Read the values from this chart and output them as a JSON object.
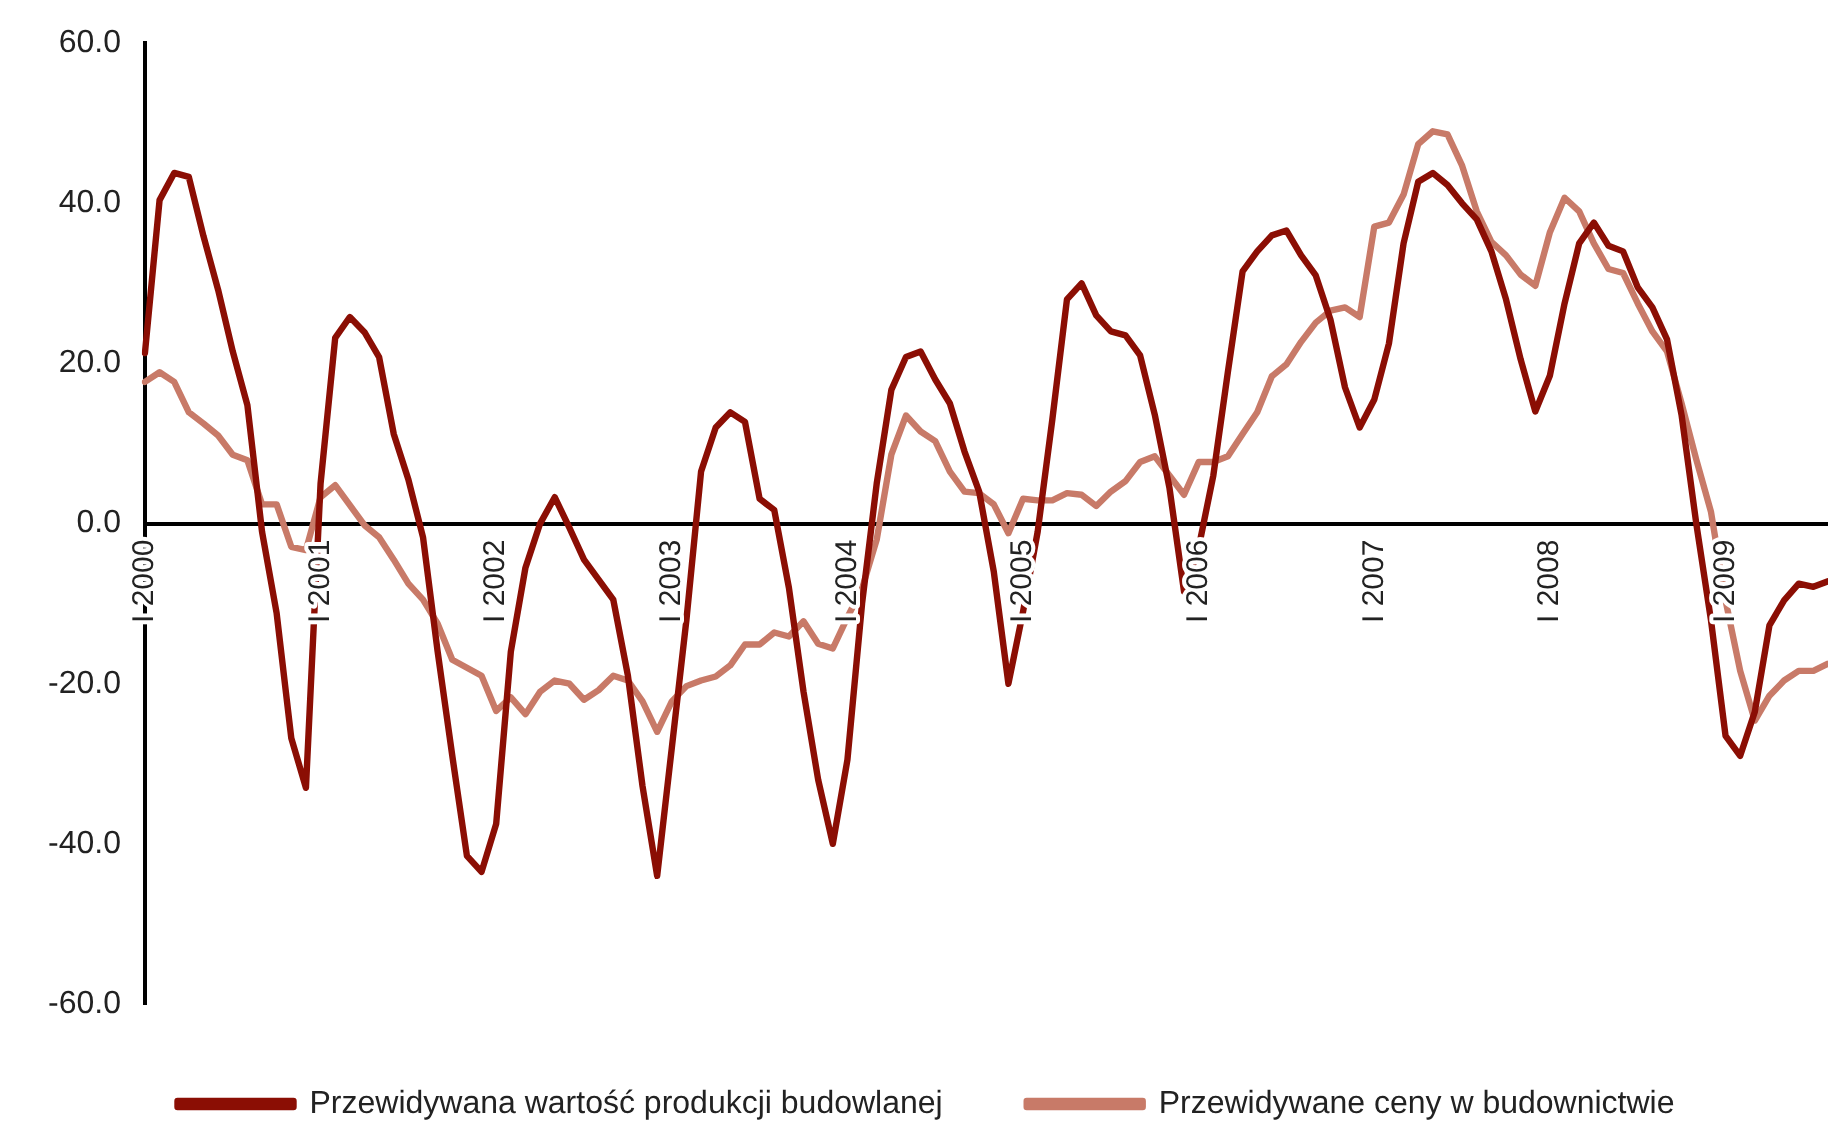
{
  "chart_data": {
    "type": "line",
    "categories": [
      "I 2000",
      null,
      null,
      null,
      null,
      null,
      null,
      null,
      null,
      null,
      null,
      null,
      "I 2001",
      null,
      null,
      null,
      null,
      null,
      null,
      null,
      null,
      null,
      null,
      null,
      "I 2002",
      null,
      null,
      null,
      null,
      null,
      null,
      null,
      null,
      null,
      null,
      null,
      "I 2003",
      null,
      null,
      null,
      null,
      null,
      null,
      null,
      null,
      null,
      null,
      null,
      "I 2004",
      null,
      null,
      null,
      null,
      null,
      null,
      null,
      null,
      null,
      null,
      null,
      "I 2005",
      null,
      null,
      null,
      null,
      null,
      null,
      null,
      null,
      null,
      null,
      null,
      "I 2006",
      null,
      null,
      null,
      null,
      null,
      null,
      null,
      null,
      null,
      null,
      null,
      "I 2007",
      null,
      null,
      null,
      null,
      null,
      null,
      null,
      null,
      null,
      null,
      null,
      "I 2008",
      null,
      null,
      null,
      null,
      null,
      null,
      null,
      null,
      null,
      null,
      null,
      "I 2009",
      null,
      null,
      null,
      null,
      null,
      null,
      null
    ],
    "series": [
      {
        "name": "Przewidywana wartość produkcji budowlanej",
        "color": "#8b0e04",
        "values": [
          21.3,
          40.4,
          43.8,
          43.3,
          35.9,
          29.2,
          21.5,
          14.8,
          -1,
          -11.2,
          -26.8,
          -33,
          5,
          23.2,
          25.8,
          23.9,
          20.8,
          11.2,
          5.5,
          -1.7,
          -16,
          -29,
          -41.5,
          -43.5,
          -37.5,
          -16,
          -5.5,
          0,
          3.3,
          -0.5,
          -4.5,
          -7,
          -9.5,
          -19,
          -32.8,
          -44,
          -28,
          -12,
          6.5,
          12,
          13.9,
          12.7,
          3.1,
          1.7,
          -8,
          -21,
          -32,
          -40,
          -29.5,
          -10,
          5,
          16.7,
          20.8,
          21.5,
          18,
          15,
          9,
          4,
          -6,
          -20,
          -11,
          -1,
          13,
          28,
          30,
          26,
          24,
          23.5,
          21,
          13.6,
          4.5,
          -8.5,
          -3,
          6,
          19,
          31.5,
          34,
          36,
          36.6,
          33.5,
          31,
          25.5,
          17,
          12,
          15.5,
          22.5,
          35,
          42.7,
          43.8,
          42.3,
          40,
          38,
          34,
          28,
          20.5,
          14,
          18.5,
          27.5,
          35,
          37.6,
          34.7,
          34,
          29.5,
          27,
          23,
          13.5,
          0,
          -12,
          -26.5,
          -29,
          -23.5,
          -12.7,
          -9.6,
          -7.5,
          -7.9,
          -7.2
        ]
      },
      {
        "name": "Przewidywane ceny w budownictwie",
        "color": "#c87a68",
        "values": [
          17.7,
          18.9,
          17.7,
          13.9,
          12.5,
          11,
          8.6,
          7.9,
          2.4,
          2.4,
          -2.9,
          -3.3,
          3.3,
          4.8,
          2.3,
          -0.2,
          -1.7,
          -4.5,
          -7.5,
          -9.5,
          -12.5,
          -17,
          -18,
          -19,
          -23.4,
          -21.7,
          -23.8,
          -21,
          -19.6,
          -20,
          -22,
          -20.8,
          -19,
          -19.6,
          -22.2,
          -26,
          -22.2,
          -20.3,
          -19.6,
          -19.1,
          -17.7,
          -15.1,
          -15.1,
          -13.6,
          -14.1,
          -12.2,
          -15,
          -15.6,
          -11.7,
          -8.1,
          -2,
          8.6,
          13.5,
          11.5,
          10.3,
          6.5,
          4,
          3.8,
          2.4,
          -1.2,
          3.1,
          2.9,
          2.9,
          3.8,
          3.6,
          2.2,
          4,
          5.3,
          7.7,
          8.4,
          6,
          3.6,
          7.7,
          7.7,
          8.4,
          11.2,
          13.9,
          18.4,
          19.9,
          22.7,
          25.1,
          26.6,
          27,
          25.8,
          37.1,
          37.6,
          41.1,
          47.4,
          49,
          48.6,
          44.7,
          39,
          35.2,
          33.5,
          31.1,
          29.7,
          36.4,
          40.7,
          39,
          35,
          31.8,
          31.3,
          27.5,
          24,
          21.5,
          15,
          8,
          1.5,
          -9.6,
          -18.4,
          -24.6,
          -21.5,
          -19.6,
          -18.4,
          -18.4,
          -17.5
        ]
      }
    ],
    "ylim": [
      -60,
      60
    ],
    "yticks": [
      {
        "value": -60,
        "label": "-60.0"
      },
      {
        "value": -40,
        "label": "-40.0"
      },
      {
        "value": -20,
        "label": "-20.0"
      },
      {
        "value": 0,
        "label": "0.0"
      },
      {
        "value": 20,
        "label": "20.0"
      },
      {
        "value": 40,
        "label": "40.0"
      },
      {
        "value": 60,
        "label": "60.0"
      }
    ],
    "legend": "bottom",
    "marker": "none"
  }
}
